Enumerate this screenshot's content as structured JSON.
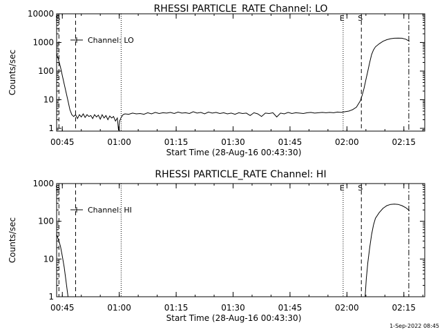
{
  "footer": {
    "timestamp": "1-Sep-2022 08:45"
  },
  "chart_data": [
    {
      "type": "line",
      "title": "RHESSI PARTICLE_RATE Channel: LO",
      "xlabel": "Start Time (28-Aug-16 00:43:30)",
      "ylabel": "Counts/sec",
      "yscale": "log",
      "xlim": [
        0,
        97
      ],
      "ylim": [
        0.8,
        10000
      ],
      "x_ticks": [
        {
          "x": 1.5,
          "label": "00:45"
        },
        {
          "x": 16.5,
          "label": "01:00"
        },
        {
          "x": 31.5,
          "label": "01:15"
        },
        {
          "x": 46.5,
          "label": "01:30"
        },
        {
          "x": 61.5,
          "label": "01:45"
        },
        {
          "x": 76.5,
          "label": "02:00"
        },
        {
          "x": 91.5,
          "label": "02:15"
        }
      ],
      "y_ticks": [
        {
          "y": 1,
          "label": "1"
        },
        {
          "y": 10,
          "label": "10"
        },
        {
          "y": 100,
          "label": "100"
        },
        {
          "y": 1000,
          "label": "1000"
        },
        {
          "y": 10000,
          "label": "10000"
        }
      ],
      "legend": {
        "label": "Channel: LO",
        "position": "top-left"
      },
      "markers": [
        {
          "x": 0.6,
          "style": "dashed",
          "label": "S"
        },
        {
          "x": 5.0,
          "style": "dashed",
          "label": ""
        },
        {
          "x": 17.0,
          "style": "dotted",
          "label": ""
        },
        {
          "x": 75.5,
          "style": "dotted",
          "label": "E"
        },
        {
          "x": 80.3,
          "style": "dashed",
          "label": "S"
        },
        {
          "x": 92.8,
          "style": "dashdot",
          "label": ""
        }
      ],
      "series": [
        {
          "points": [
            [
              0,
              400
            ],
            [
              0.5,
              250
            ],
            [
              1,
              140
            ],
            [
              1.5,
              70
            ],
            [
              2,
              35
            ],
            [
              2.5,
              18
            ],
            [
              3,
              9
            ],
            [
              3.5,
              4.5
            ],
            [
              4,
              3
            ],
            [
              4.5,
              2.6
            ],
            [
              5,
              3.0
            ],
            [
              5.5,
              2.2
            ],
            [
              6,
              3.0
            ],
            [
              6.5,
              2.5
            ],
            [
              7,
              3.2
            ],
            [
              7.5,
              2.4
            ],
            [
              8,
              3.0
            ],
            [
              8.5,
              2.6
            ],
            [
              9,
              2.8
            ],
            [
              9.5,
              2.2
            ],
            [
              10,
              3.0
            ],
            [
              10.5,
              2.5
            ],
            [
              11,
              2.9
            ],
            [
              11.5,
              2.1
            ],
            [
              12,
              3.0
            ],
            [
              12.5,
              2.3
            ],
            [
              13,
              2.8
            ],
            [
              13.5,
              2.0
            ],
            [
              14,
              2.7
            ],
            [
              14.5,
              2.3
            ],
            [
              15,
              2.6
            ],
            [
              15.5,
              1.8
            ],
            [
              16,
              2.3
            ],
            [
              16.3,
              0.85
            ],
            [
              16.6,
              1.8
            ],
            [
              17,
              2.4
            ],
            [
              17.5,
              3.0
            ],
            [
              18,
              3.2
            ],
            [
              19,
              3.1
            ],
            [
              20,
              3.4
            ],
            [
              21,
              3.2
            ],
            [
              22,
              3.3
            ],
            [
              23,
              3.1
            ],
            [
              24,
              3.5
            ],
            [
              25,
              3.2
            ],
            [
              26,
              3.6
            ],
            [
              27,
              3.3
            ],
            [
              28,
              3.5
            ],
            [
              29,
              3.4
            ],
            [
              30,
              3.6
            ],
            [
              31,
              3.3
            ],
            [
              32,
              3.7
            ],
            [
              33,
              3.4
            ],
            [
              34,
              3.5
            ],
            [
              35,
              3.3
            ],
            [
              36,
              3.8
            ],
            [
              37,
              3.4
            ],
            [
              38,
              3.6
            ],
            [
              39,
              3.2
            ],
            [
              40,
              3.7
            ],
            [
              41,
              3.4
            ],
            [
              42,
              3.6
            ],
            [
              43,
              3.3
            ],
            [
              44,
              3.5
            ],
            [
              45,
              3.2
            ],
            [
              46,
              3.4
            ],
            [
              47,
              3.1
            ],
            [
              48,
              3.5
            ],
            [
              49,
              3.3
            ],
            [
              50,
              3.4
            ],
            [
              51,
              2.8
            ],
            [
              52,
              3.5
            ],
            [
              53,
              3.2
            ],
            [
              54,
              2.6
            ],
            [
              55,
              3.4
            ],
            [
              56,
              3.3
            ],
            [
              57,
              3.5
            ],
            [
              58,
              2.5
            ],
            [
              59,
              3.4
            ],
            [
              60,
              3.2
            ],
            [
              61,
              3.6
            ],
            [
              62,
              3.3
            ],
            [
              63,
              3.5
            ],
            [
              64,
              3.4
            ],
            [
              65,
              3.3
            ],
            [
              66,
              3.5
            ],
            [
              67,
              3.6
            ],
            [
              68,
              3.4
            ],
            [
              69,
              3.5
            ],
            [
              70,
              3.6
            ],
            [
              71,
              3.5
            ],
            [
              72,
              3.6
            ],
            [
              73,
              3.5
            ],
            [
              74,
              3.7
            ],
            [
              75,
              3.6
            ],
            [
              76,
              3.8
            ],
            [
              77,
              4.0
            ],
            [
              78,
              4.5
            ],
            [
              79,
              5.5
            ],
            [
              79.5,
              7
            ],
            [
              80,
              9
            ],
            [
              80.5,
              14
            ],
            [
              81,
              25
            ],
            [
              81.5,
              50
            ],
            [
              82,
              100
            ],
            [
              82.5,
              200
            ],
            [
              83,
              380
            ],
            [
              83.5,
              550
            ],
            [
              84,
              700
            ],
            [
              85,
              900
            ],
            [
              86,
              1100
            ],
            [
              87,
              1250
            ],
            [
              88,
              1350
            ],
            [
              89,
              1400
            ],
            [
              90,
              1420
            ],
            [
              91,
              1400
            ],
            [
              92,
              1300
            ],
            [
              93,
              1100
            ]
          ]
        }
      ]
    },
    {
      "type": "line",
      "title": "RHESSI PARTICLE_RATE Channel: HI",
      "xlabel": "Start Time (28-Aug-16 00:43:30)",
      "ylabel": "Counts/sec",
      "yscale": "log",
      "xlim": [
        0,
        97
      ],
      "ylim": [
        1,
        1000
      ],
      "x_ticks": [
        {
          "x": 1.5,
          "label": "00:45"
        },
        {
          "x": 16.5,
          "label": "01:00"
        },
        {
          "x": 31.5,
          "label": "01:15"
        },
        {
          "x": 46.5,
          "label": "01:30"
        },
        {
          "x": 61.5,
          "label": "01:45"
        },
        {
          "x": 76.5,
          "label": "02:00"
        },
        {
          "x": 91.5,
          "label": "02:15"
        }
      ],
      "y_ticks": [
        {
          "y": 1,
          "label": "1"
        },
        {
          "y": 10,
          "label": "10"
        },
        {
          "y": 100,
          "label": "100"
        },
        {
          "y": 1000,
          "label": "1000"
        }
      ],
      "legend": {
        "label": "Channel: HI",
        "position": "top-left"
      },
      "markers": [
        {
          "x": 0.6,
          "style": "dashed",
          "label": "S"
        },
        {
          "x": 5.0,
          "style": "dashed",
          "label": ""
        },
        {
          "x": 17.0,
          "style": "dotted",
          "label": ""
        },
        {
          "x": 75.5,
          "style": "dotted",
          "label": "E"
        },
        {
          "x": 80.3,
          "style": "dashed",
          "label": "S"
        },
        {
          "x": 92.8,
          "style": "dashdot",
          "label": ""
        }
      ],
      "series": [
        {
          "points": [
            [
              0,
              45
            ],
            [
              0.5,
              32
            ],
            [
              1,
              22
            ],
            [
              1.5,
              12
            ],
            [
              2,
              6
            ],
            [
              2.5,
              2.5
            ],
            [
              3,
              1.0
            ]
          ]
        },
        {
          "points": [
            [
              81.3,
              1.0
            ],
            [
              81.6,
              3
            ],
            [
              82,
              8
            ],
            [
              82.5,
              20
            ],
            [
              83,
              45
            ],
            [
              83.5,
              80
            ],
            [
              84,
              120
            ],
            [
              85,
              170
            ],
            [
              86,
              220
            ],
            [
              87,
              260
            ],
            [
              88,
              280
            ],
            [
              89,
              285
            ],
            [
              90,
              280
            ],
            [
              91,
              260
            ],
            [
              92,
              230
            ],
            [
              93,
              190
            ]
          ]
        }
      ]
    }
  ]
}
